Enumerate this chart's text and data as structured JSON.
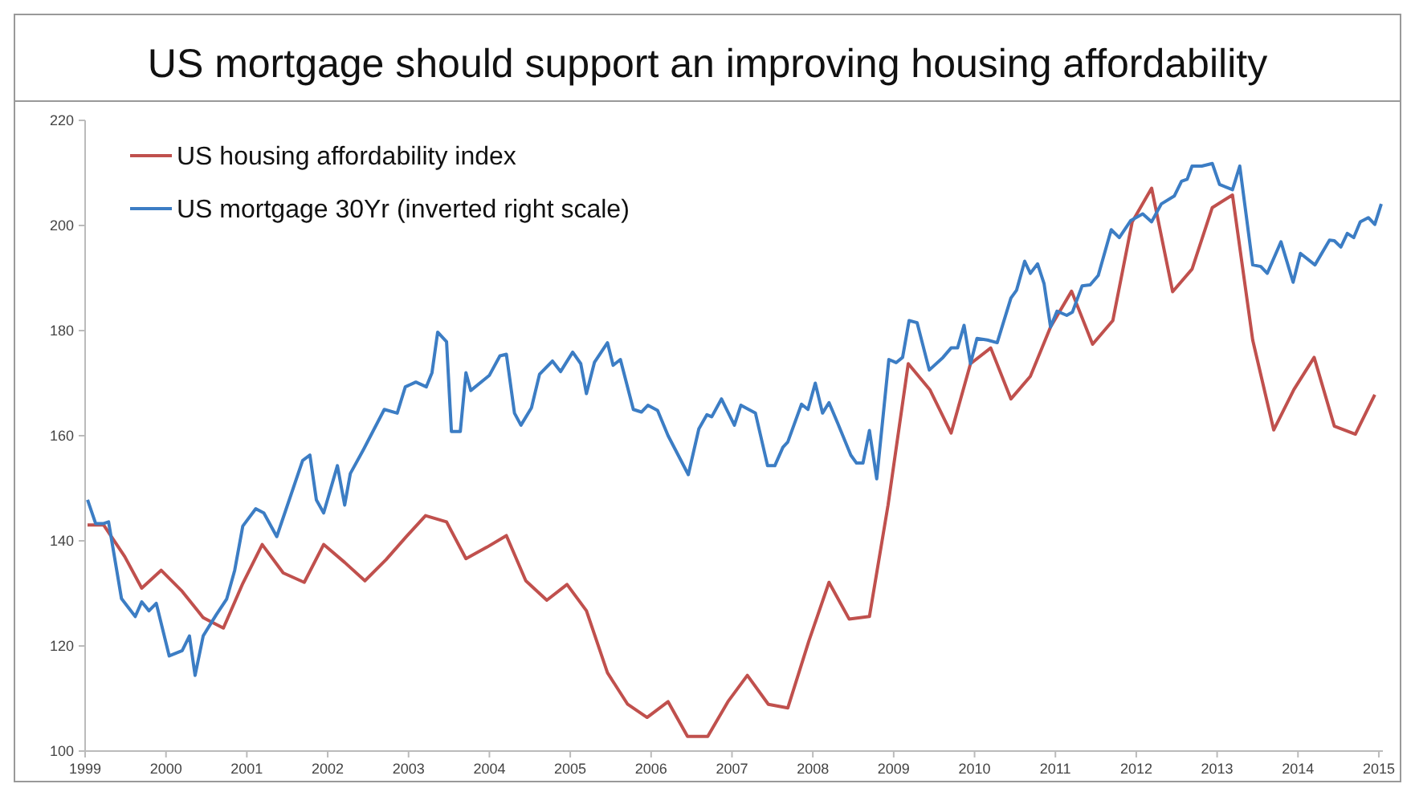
{
  "chart_data": {
    "type": "line",
    "title": "US mortgage should support an improving housing affordability",
    "xlim": [
      1999,
      2015.05
    ],
    "xticks": [
      1999,
      2000,
      2001,
      2002,
      2003,
      2004,
      2005,
      2006,
      2007,
      2008,
      2009,
      2010,
      2011,
      2012,
      2013,
      2014,
      2015
    ],
    "ylim": [
      100,
      220
    ],
    "yticks": [
      100,
      120,
      140,
      160,
      180,
      200,
      220
    ],
    "grid": false,
    "legend": "top left",
    "marker": "none",
    "line_style": "solid",
    "series": [
      {
        "name": "US housing affordability index",
        "color": "#c0504d",
        "x": [
          1999.03,
          1999.23,
          1999.49,
          1999.7,
          1999.94,
          2000.2,
          2000.46,
          2000.71,
          2000.95,
          2001.19,
          2001.45,
          2001.71,
          2001.95,
          2002.21,
          2002.46,
          2002.72,
          2002.96,
          2003.21,
          2003.47,
          2003.71,
          2003.97,
          2004.21,
          2004.45,
          2004.71,
          2004.96,
          2005.2,
          2005.46,
          2005.71,
          2005.95,
          2006.21,
          2006.45,
          2006.7,
          2006.95,
          2007.19,
          2007.45,
          2007.69,
          2007.95,
          2008.2,
          2008.45,
          2008.7,
          2008.93,
          2009.18,
          2009.45,
          2009.71,
          2009.95,
          2010.2,
          2010.45,
          2010.69,
          2010.94,
          2011.2,
          2011.46,
          2011.71,
          2011.95,
          2012.19,
          2012.45,
          2012.69,
          2012.94,
          2013.19,
          2013.44,
          2013.7,
          2013.95,
          2014.2,
          2014.45,
          2014.71,
          2014.95
        ],
        "values": [
          143,
          143,
          137,
          131,
          134.4,
          130.4,
          125.4,
          123.4,
          131.9,
          139.3,
          133.9,
          132.1,
          139.3,
          135.9,
          132.4,
          136.4,
          140.6,
          144.8,
          143.6,
          136.6,
          138.8,
          141,
          132.4,
          128.7,
          131.7,
          126.7,
          114.9,
          108.9,
          106.4,
          109.4,
          102.8,
          102.8,
          109.4,
          114.4,
          108.9,
          108.2,
          120.9,
          132.1,
          125.1,
          125.6,
          146.8,
          173.7,
          168.7,
          160.5,
          173.7,
          176.7,
          167,
          171.3,
          180.7,
          187.5,
          177.4,
          181.9,
          200.7,
          207.1,
          187.4,
          191.7,
          203.4,
          205.8,
          178.2,
          161.1,
          168.8,
          174.9,
          161.8,
          160.3,
          167.8
        ]
      },
      {
        "name": "US mortgage 30Yr (inverted right scale)",
        "color": "#3c7dc4",
        "x": [
          1999.03,
          1999.13,
          1999.23,
          1999.29,
          1999.45,
          1999.62,
          1999.7,
          1999.79,
          1999.88,
          2000.04,
          2000.2,
          2000.29,
          2000.36,
          2000.46,
          2000.62,
          2000.75,
          2000.85,
          2000.95,
          2001.11,
          2001.21,
          2001.37,
          2001.69,
          2001.78,
          2001.86,
          2001.95,
          2002.12,
          2002.21,
          2002.28,
          2002.44,
          2002.7,
          2002.86,
          2002.96,
          2003.09,
          2003.22,
          2003.29,
          2003.36,
          2003.47,
          2003.53,
          2003.64,
          2003.71,
          2003.77,
          2004,
          2004.13,
          2004.21,
          2004.31,
          2004.39,
          2004.52,
          2004.62,
          2004.78,
          2004.88,
          2005.03,
          2005.13,
          2005.2,
          2005.3,
          2005.46,
          2005.53,
          2005.62,
          2005.78,
          2005.88,
          2005.96,
          2006.08,
          2006.21,
          2006.46,
          2006.59,
          2006.69,
          2006.75,
          2006.87,
          2007.03,
          2007.11,
          2007.29,
          2007.44,
          2007.53,
          2007.63,
          2007.69,
          2007.86,
          2007.94,
          2008.03,
          2008.12,
          2008.2,
          2008.31,
          2008.47,
          2008.54,
          2008.62,
          2008.7,
          2008.79,
          2008.94,
          2009.03,
          2009.11,
          2009.19,
          2009.29,
          2009.44,
          2009.61,
          2009.71,
          2009.79,
          2009.87,
          2009.95,
          2010.03,
          2010.16,
          2010.28,
          2010.45,
          2010.52,
          2010.62,
          2010.69,
          2010.78,
          2010.86,
          2010.94,
          2011.02,
          2011.14,
          2011.21,
          2011.33,
          2011.43,
          2011.53,
          2011.69,
          2011.79,
          2011.93,
          2012.08,
          2012.19,
          2012.31,
          2012.47,
          2012.56,
          2012.63,
          2012.69,
          2012.81,
          2012.94,
          2013.03,
          2013.19,
          2013.28,
          2013.44,
          2013.54,
          2013.62,
          2013.79,
          2013.94,
          2014.03,
          2014.21,
          2014.39,
          2014.45,
          2014.53,
          2014.61,
          2014.69,
          2014.77,
          2014.87,
          2014.95,
          2015.03
        ],
        "values": [
          147.8,
          143.3,
          143.3,
          143.6,
          129,
          125.6,
          128.4,
          126.7,
          128.1,
          118.1,
          119.1,
          121.9,
          114.4,
          121.9,
          125.9,
          128.9,
          134.4,
          142.8,
          146.1,
          145.3,
          140.8,
          155.3,
          156.3,
          147.8,
          145.3,
          154.3,
          146.8,
          152.8,
          157.3,
          165,
          164.3,
          169.3,
          170.2,
          169.3,
          172,
          179.7,
          177.9,
          160.8,
          160.8,
          172,
          168.6,
          171.5,
          175.2,
          175.5,
          164.3,
          162,
          165.3,
          171.7,
          174.2,
          172.2,
          175.9,
          173.7,
          168,
          174,
          177.7,
          173.4,
          174.5,
          165,
          164.5,
          165.8,
          164.8,
          160,
          152.6,
          161.3,
          164,
          163.6,
          167,
          162,
          165.8,
          164.3,
          154.3,
          154.3,
          157.8,
          158.8,
          166,
          165,
          170,
          164.3,
          166.3,
          162.3,
          156.3,
          154.8,
          154.8,
          161,
          151.8,
          174.5,
          173.9,
          174.9,
          181.9,
          181.5,
          172.5,
          174.9,
          176.7,
          176.7,
          181,
          173.7,
          178.5,
          178.2,
          177.7,
          186.2,
          187.7,
          193.2,
          190.9,
          192.7,
          188.9,
          180.7,
          183.7,
          182.9,
          183.5,
          188.5,
          188.7,
          190.5,
          199.2,
          197.7,
          200.9,
          202.2,
          200.7,
          204.1,
          205.6,
          208.4,
          208.8,
          211.3,
          211.3,
          211.8,
          207.8,
          206.8,
          211.3,
          192.5,
          192.2,
          190.9,
          196.9,
          189.2,
          194.7,
          192.5,
          197.2,
          197.1,
          195.9,
          198.5,
          197.7,
          200.7,
          201.5,
          200.2,
          204.1
        ]
      }
    ]
  }
}
